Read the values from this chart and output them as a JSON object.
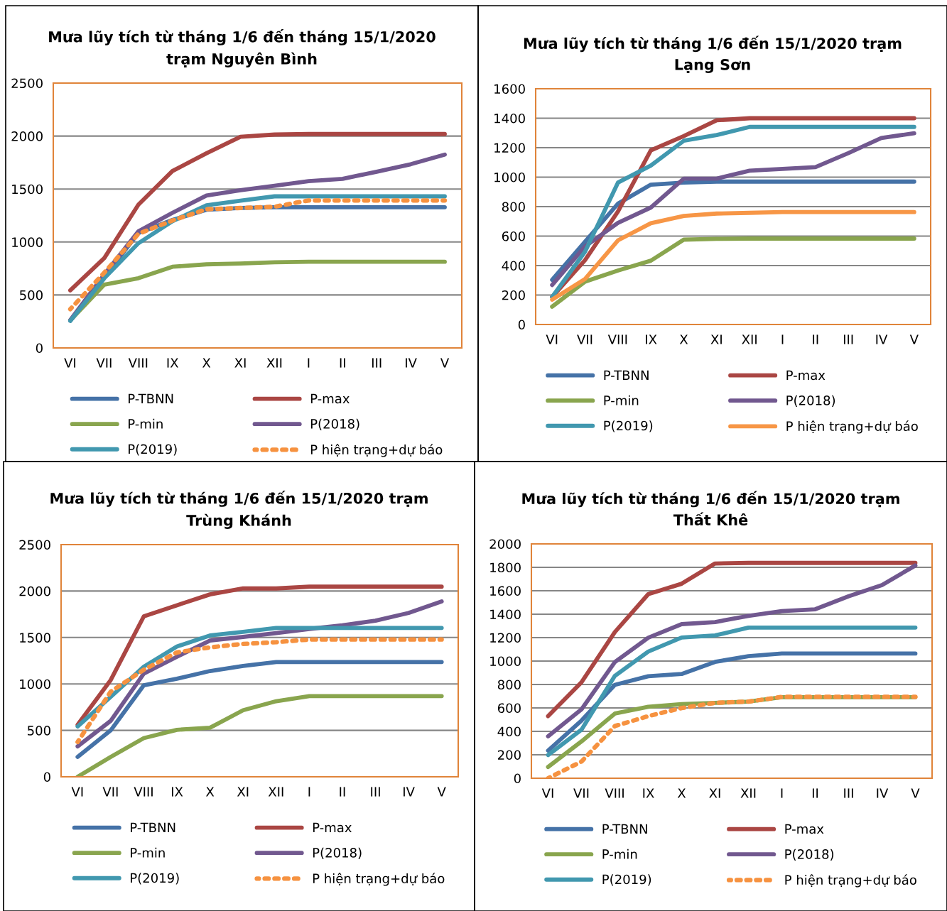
{
  "chart_data": [
    {
      "type": "line",
      "title": "Mưa lũy tích từ tháng 1/6 đến tháng 15/1/2020\ntrạm Nguyên Bình",
      "categories": [
        "VI",
        "VII",
        "VIII",
        "IX",
        "X",
        "XI",
        "XII",
        "I",
        "II",
        "III",
        "IV",
        "V"
      ],
      "ylim": [
        0,
        2500
      ],
      "yticks": [
        0,
        500,
        1000,
        1500,
        2000,
        2500
      ],
      "grid": "y",
      "legend": "bottom",
      "series": [
        {
          "name": "P-TBNN",
          "color": "#4572a7",
          "values": [
            256,
            670,
            1084,
            1208,
            1304,
            1321,
            1328,
            1328,
            1328,
            1328,
            1328,
            1328
          ]
        },
        {
          "name": "P-max",
          "color": "#aa4643",
          "values": [
            543,
            849,
            1352,
            1670,
            1837,
            1993,
            2014,
            2019,
            2019,
            2019,
            2019,
            2019
          ]
        },
        {
          "name": "P-min",
          "color": "#89a54e",
          "values": [
            260,
            598,
            658,
            766,
            789,
            797,
            809,
            813,
            813,
            813,
            813,
            813
          ]
        },
        {
          "name": "P(2018)",
          "color": "#71588f",
          "values": [
            263,
            694,
            1100,
            1275,
            1438,
            1488,
            1531,
            1574,
            1596,
            1663,
            1734,
            1825
          ]
        },
        {
          "name": "P(2019)",
          "color": "#4198af",
          "values": [
            256,
            658,
            988,
            1196,
            1347,
            1390,
            1431,
            1431,
            1431,
            1431,
            1431,
            1431
          ]
        },
        {
          "name": "P hiện trạng+dự báo",
          "color": "#f69240",
          "line_style": "dotted",
          "values": [
            366,
            711,
            1077,
            1203,
            1309,
            1321,
            1333,
            1392,
            1392,
            1392,
            1392,
            1392
          ]
        }
      ]
    },
    {
      "type": "line",
      "title": "Mưa lũy tích từ tháng 1/6 đến 15/1/2020 trạm\nLạng Sơn",
      "categories": [
        "VI",
        "VII",
        "VIII",
        "IX",
        "X",
        "XI",
        "XII",
        "I",
        "II",
        "III",
        "IV",
        "V"
      ],
      "ylim": [
        0,
        1600
      ],
      "yticks": [
        0,
        200,
        400,
        600,
        800,
        1000,
        1200,
        1400,
        1600
      ],
      "grid": "y",
      "legend": "bottom",
      "series": [
        {
          "name": "P-TBNN",
          "color": "#4572a7",
          "values": [
            303,
            562,
            820,
            949,
            963,
            970,
            970,
            970,
            970,
            970,
            970,
            970
          ]
        },
        {
          "name": "P-max",
          "color": "#aa4643",
          "values": [
            187,
            437,
            767,
            1182,
            1279,
            1386,
            1400,
            1400,
            1400,
            1400,
            1400,
            1400
          ]
        },
        {
          "name": "P-min",
          "color": "#89a54e",
          "values": [
            121,
            291,
            366,
            433,
            576,
            581,
            583,
            583,
            583,
            583,
            583,
            583
          ]
        },
        {
          "name": "P(2018)",
          "color": "#71588f",
          "values": [
            268,
            530,
            690,
            794,
            990,
            990,
            1044,
            1056,
            1068,
            1163,
            1266,
            1298
          ]
        },
        {
          "name": "P(2019)",
          "color": "#4198af",
          "values": [
            187,
            494,
            963,
            1079,
            1247,
            1286,
            1341,
            1341,
            1341,
            1341,
            1341,
            1341
          ]
        },
        {
          "name": "P hiện trạng+dự báo",
          "color": "#f79646",
          "line_style": "solid",
          "values": [
            169,
            309,
            571,
            687,
            737,
            753,
            758,
            763,
            763,
            763,
            763,
            763
          ]
        }
      ]
    },
    {
      "type": "line",
      "title": "Mưa lũy tích từ tháng 1/6 đến 15/1/2020 trạm\nTrùng Khánh",
      "categories": [
        "VI",
        "VII",
        "VIII",
        "IX",
        "X",
        "XI",
        "XII",
        "I",
        "II",
        "III",
        "IV",
        "V"
      ],
      "ylim": [
        0,
        2500
      ],
      "yticks": [
        0,
        500,
        1000,
        1500,
        2000,
        2500
      ],
      "grid": "y",
      "legend": "bottom",
      "series": [
        {
          "name": "P-TBNN",
          "color": "#4572a7",
          "values": [
            214,
            500,
            986,
            1056,
            1139,
            1194,
            1236,
            1236,
            1236,
            1236,
            1236,
            1236
          ]
        },
        {
          "name": "P-max",
          "color": "#aa4643",
          "values": [
            561,
            1042,
            1728,
            1847,
            1964,
            2028,
            2028,
            2047,
            2047,
            2047,
            2047,
            2047
          ]
        },
        {
          "name": "P-min",
          "color": "#89a54e",
          "values": [
            0,
            214,
            417,
            506,
            528,
            717,
            814,
            869,
            869,
            869,
            869,
            869
          ]
        },
        {
          "name": "P(2018)",
          "color": "#71588f",
          "values": [
            328,
            603,
            1111,
            1292,
            1467,
            1506,
            1547,
            1592,
            1631,
            1681,
            1764,
            1889
          ]
        },
        {
          "name": "P(2019)",
          "color": "#4198af",
          "values": [
            542,
            861,
            1186,
            1403,
            1522,
            1561,
            1603,
            1603,
            1603,
            1603,
            1603,
            1603
          ]
        },
        {
          "name": "P hiện trạng+dự báo",
          "color": "#f69240",
          "line_style": "dotted",
          "values": [
            375,
            917,
            1153,
            1339,
            1394,
            1431,
            1450,
            1478,
            1478,
            1478,
            1478,
            1478
          ]
        }
      ]
    },
    {
      "type": "line",
      "title": "Mưa lũy tích từ tháng 1/6 đến 15/1/2020 trạm\nThất Khê",
      "categories": [
        "VI",
        "VII",
        "VIII",
        "IX",
        "X",
        "XI",
        "XII",
        "I",
        "II",
        "III",
        "IV",
        "V"
      ],
      "ylim": [
        0,
        2000
      ],
      "yticks": [
        0,
        200,
        400,
        600,
        800,
        1000,
        1200,
        1400,
        1600,
        1800,
        2000
      ],
      "grid": "y",
      "legend": "bottom",
      "series": [
        {
          "name": "P-TBNN",
          "color": "#4572a7",
          "values": [
            236,
            492,
            797,
            870,
            890,
            993,
            1042,
            1064,
            1064,
            1064,
            1064,
            1064
          ]
        },
        {
          "name": "P-max",
          "color": "#aa4643",
          "values": [
            530,
            819,
            1248,
            1571,
            1660,
            1833,
            1838,
            1838,
            1838,
            1838,
            1838,
            1838
          ]
        },
        {
          "name": "P-min",
          "color": "#89a54e",
          "values": [
            96,
            314,
            552,
            610,
            632,
            643,
            654,
            692,
            692,
            692,
            692,
            692
          ]
        },
        {
          "name": "P(2018)",
          "color": "#71588f",
          "values": [
            358,
            588,
            992,
            1199,
            1315,
            1333,
            1386,
            1426,
            1442,
            1553,
            1649,
            1816
          ]
        },
        {
          "name": "P(2019)",
          "color": "#4198af",
          "values": [
            198,
            414,
            874,
            1081,
            1201,
            1219,
            1286,
            1286,
            1286,
            1286,
            1286,
            1286
          ]
        },
        {
          "name": "P hiện trạng+dự báo",
          "color": "#f69240",
          "line_style": "dotted",
          "values": [
            0,
            142,
            445,
            530,
            599,
            643,
            654,
            694,
            694,
            694,
            694,
            694
          ]
        }
      ]
    }
  ]
}
